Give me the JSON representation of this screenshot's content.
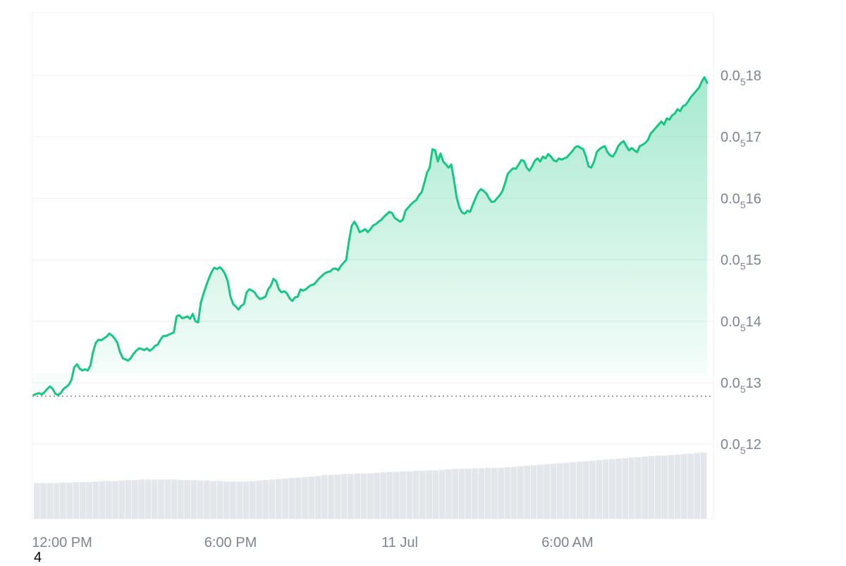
{
  "chart_data": {
    "type": "area",
    "y_ticks": [
      {
        "value": 1.2e-06,
        "prefix": "0.0",
        "sub": "5",
        "digits": "12"
      },
      {
        "value": 1.3e-06,
        "prefix": "0.0",
        "sub": "5",
        "digits": "13"
      },
      {
        "value": 1.4e-06,
        "prefix": "0.0",
        "sub": "5",
        "digits": "14"
      },
      {
        "value": 1.5e-06,
        "prefix": "0.0",
        "sub": "5",
        "digits": "15"
      },
      {
        "value": 1.6e-06,
        "prefix": "0.0",
        "sub": "5",
        "digits": "16"
      },
      {
        "value": 1.7e-06,
        "prefix": "0.0",
        "sub": "5",
        "digits": "17"
      },
      {
        "value": 1.8e-06,
        "prefix": "0.0",
        "sub": "5",
        "digits": "18"
      }
    ],
    "x_ticks": [
      "12:00 PM",
      "6:00 PM",
      "11 Jul",
      "6:00 AM"
    ],
    "ylim": [
      1.09e-06,
      1.89e-06
    ],
    "reference_value": 1.278e-06,
    "line_color": "#16c784",
    "area_color": "#16c784",
    "volume_color": "#e3e7ec",
    "grid_color": "#eef0f3",
    "series": [
      {
        "values": [
          1.28,
          1.282,
          1.283,
          1.281,
          1.285,
          1.29,
          1.294,
          1.29,
          1.282,
          1.28,
          1.283,
          1.29,
          1.293,
          1.297,
          1.305,
          1.325,
          1.33,
          1.323,
          1.32,
          1.322,
          1.32,
          1.328,
          1.35,
          1.365,
          1.37,
          1.369,
          1.372,
          1.375,
          1.38,
          1.377,
          1.372,
          1.365,
          1.35,
          1.34,
          1.338,
          1.336,
          1.34,
          1.347,
          1.352,
          1.356,
          1.355,
          1.353,
          1.356,
          1.352,
          1.355,
          1.36,
          1.362,
          1.37,
          1.376,
          1.376,
          1.378,
          1.38,
          1.382,
          1.408,
          1.41,
          1.405,
          1.406,
          1.408,
          1.404,
          1.412,
          1.4,
          1.398,
          1.43,
          1.445,
          1.458,
          1.47,
          1.48,
          1.487,
          1.485,
          1.488,
          1.484,
          1.477,
          1.465,
          1.44,
          1.428,
          1.424,
          1.419,
          1.425,
          1.428,
          1.447,
          1.452,
          1.45,
          1.447,
          1.44,
          1.436,
          1.438,
          1.44,
          1.452,
          1.458,
          1.469,
          1.465,
          1.452,
          1.447,
          1.449,
          1.445,
          1.437,
          1.433,
          1.439,
          1.44,
          1.452,
          1.45,
          1.452,
          1.456,
          1.459,
          1.46,
          1.465,
          1.47,
          1.474,
          1.478,
          1.48,
          1.481,
          1.485,
          1.486,
          1.483,
          1.49,
          1.495,
          1.5,
          1.53,
          1.555,
          1.562,
          1.555,
          1.545,
          1.547,
          1.55,
          1.545,
          1.55,
          1.556,
          1.558,
          1.562,
          1.565,
          1.57,
          1.574,
          1.578,
          1.576,
          1.568,
          1.565,
          1.562,
          1.565,
          1.58,
          1.585,
          1.59,
          1.594,
          1.597,
          1.605,
          1.61,
          1.625,
          1.642,
          1.65,
          1.68,
          1.678,
          1.66,
          1.673,
          1.66,
          1.655,
          1.65,
          1.655,
          1.63,
          1.602,
          1.585,
          1.577,
          1.575,
          1.58,
          1.578,
          1.59,
          1.6,
          1.61,
          1.615,
          1.612,
          1.608,
          1.6,
          1.594,
          1.595,
          1.6,
          1.605,
          1.612,
          1.625,
          1.64,
          1.645,
          1.649,
          1.648,
          1.655,
          1.662,
          1.661,
          1.65,
          1.645,
          1.652,
          1.661,
          1.665,
          1.66,
          1.668,
          1.665,
          1.672,
          1.668,
          1.662,
          1.66,
          1.665,
          1.663,
          1.665,
          1.667,
          1.672,
          1.677,
          1.683,
          1.685,
          1.682,
          1.68,
          1.668,
          1.652,
          1.65,
          1.66,
          1.675,
          1.68,
          1.683,
          1.685,
          1.675,
          1.67,
          1.668,
          1.675,
          1.685,
          1.69,
          1.693,
          1.685,
          1.678,
          1.682,
          1.678,
          1.675,
          1.685,
          1.687,
          1.69,
          1.695,
          1.705,
          1.71,
          1.715,
          1.72,
          1.725,
          1.72,
          1.73,
          1.728,
          1.735,
          1.738,
          1.745,
          1.742,
          1.75,
          1.752,
          1.758,
          1.765,
          1.77,
          1.775,
          1.78,
          1.79,
          1.797,
          1.788
        ]
      }
    ],
    "volume": [
      0.35,
      0.35,
      0.35,
      0.35,
      0.355,
      0.355,
      0.36,
      0.36,
      0.36,
      0.365,
      0.37,
      0.37,
      0.37,
      0.375,
      0.38,
      0.38,
      0.385,
      0.385,
      0.385,
      0.385,
      0.385,
      0.385,
      0.38,
      0.38,
      0.38,
      0.375,
      0.375,
      0.37,
      0.37,
      0.365,
      0.365,
      0.365,
      0.365,
      0.37,
      0.375,
      0.38,
      0.385,
      0.39,
      0.395,
      0.4,
      0.405,
      0.41,
      0.415,
      0.42,
      0.43,
      0.43,
      0.435,
      0.44,
      0.44,
      0.445,
      0.445,
      0.445,
      0.45,
      0.455,
      0.46,
      0.46,
      0.465,
      0.465,
      0.47,
      0.47,
      0.475,
      0.475,
      0.48,
      0.485,
      0.49,
      0.49,
      0.49,
      0.495,
      0.495,
      0.5,
      0.5,
      0.5,
      0.505,
      0.51,
      0.515,
      0.52,
      0.525,
      0.53,
      0.535,
      0.54,
      0.545,
      0.55,
      0.555,
      0.56,
      0.565,
      0.57,
      0.575,
      0.58,
      0.585,
      0.59,
      0.595,
      0.6,
      0.605,
      0.61,
      0.615,
      0.62,
      0.62,
      0.625,
      0.63,
      0.635,
      0.64,
      0.645,
      0.65
    ]
  },
  "misc": {
    "stray_text": "4"
  }
}
